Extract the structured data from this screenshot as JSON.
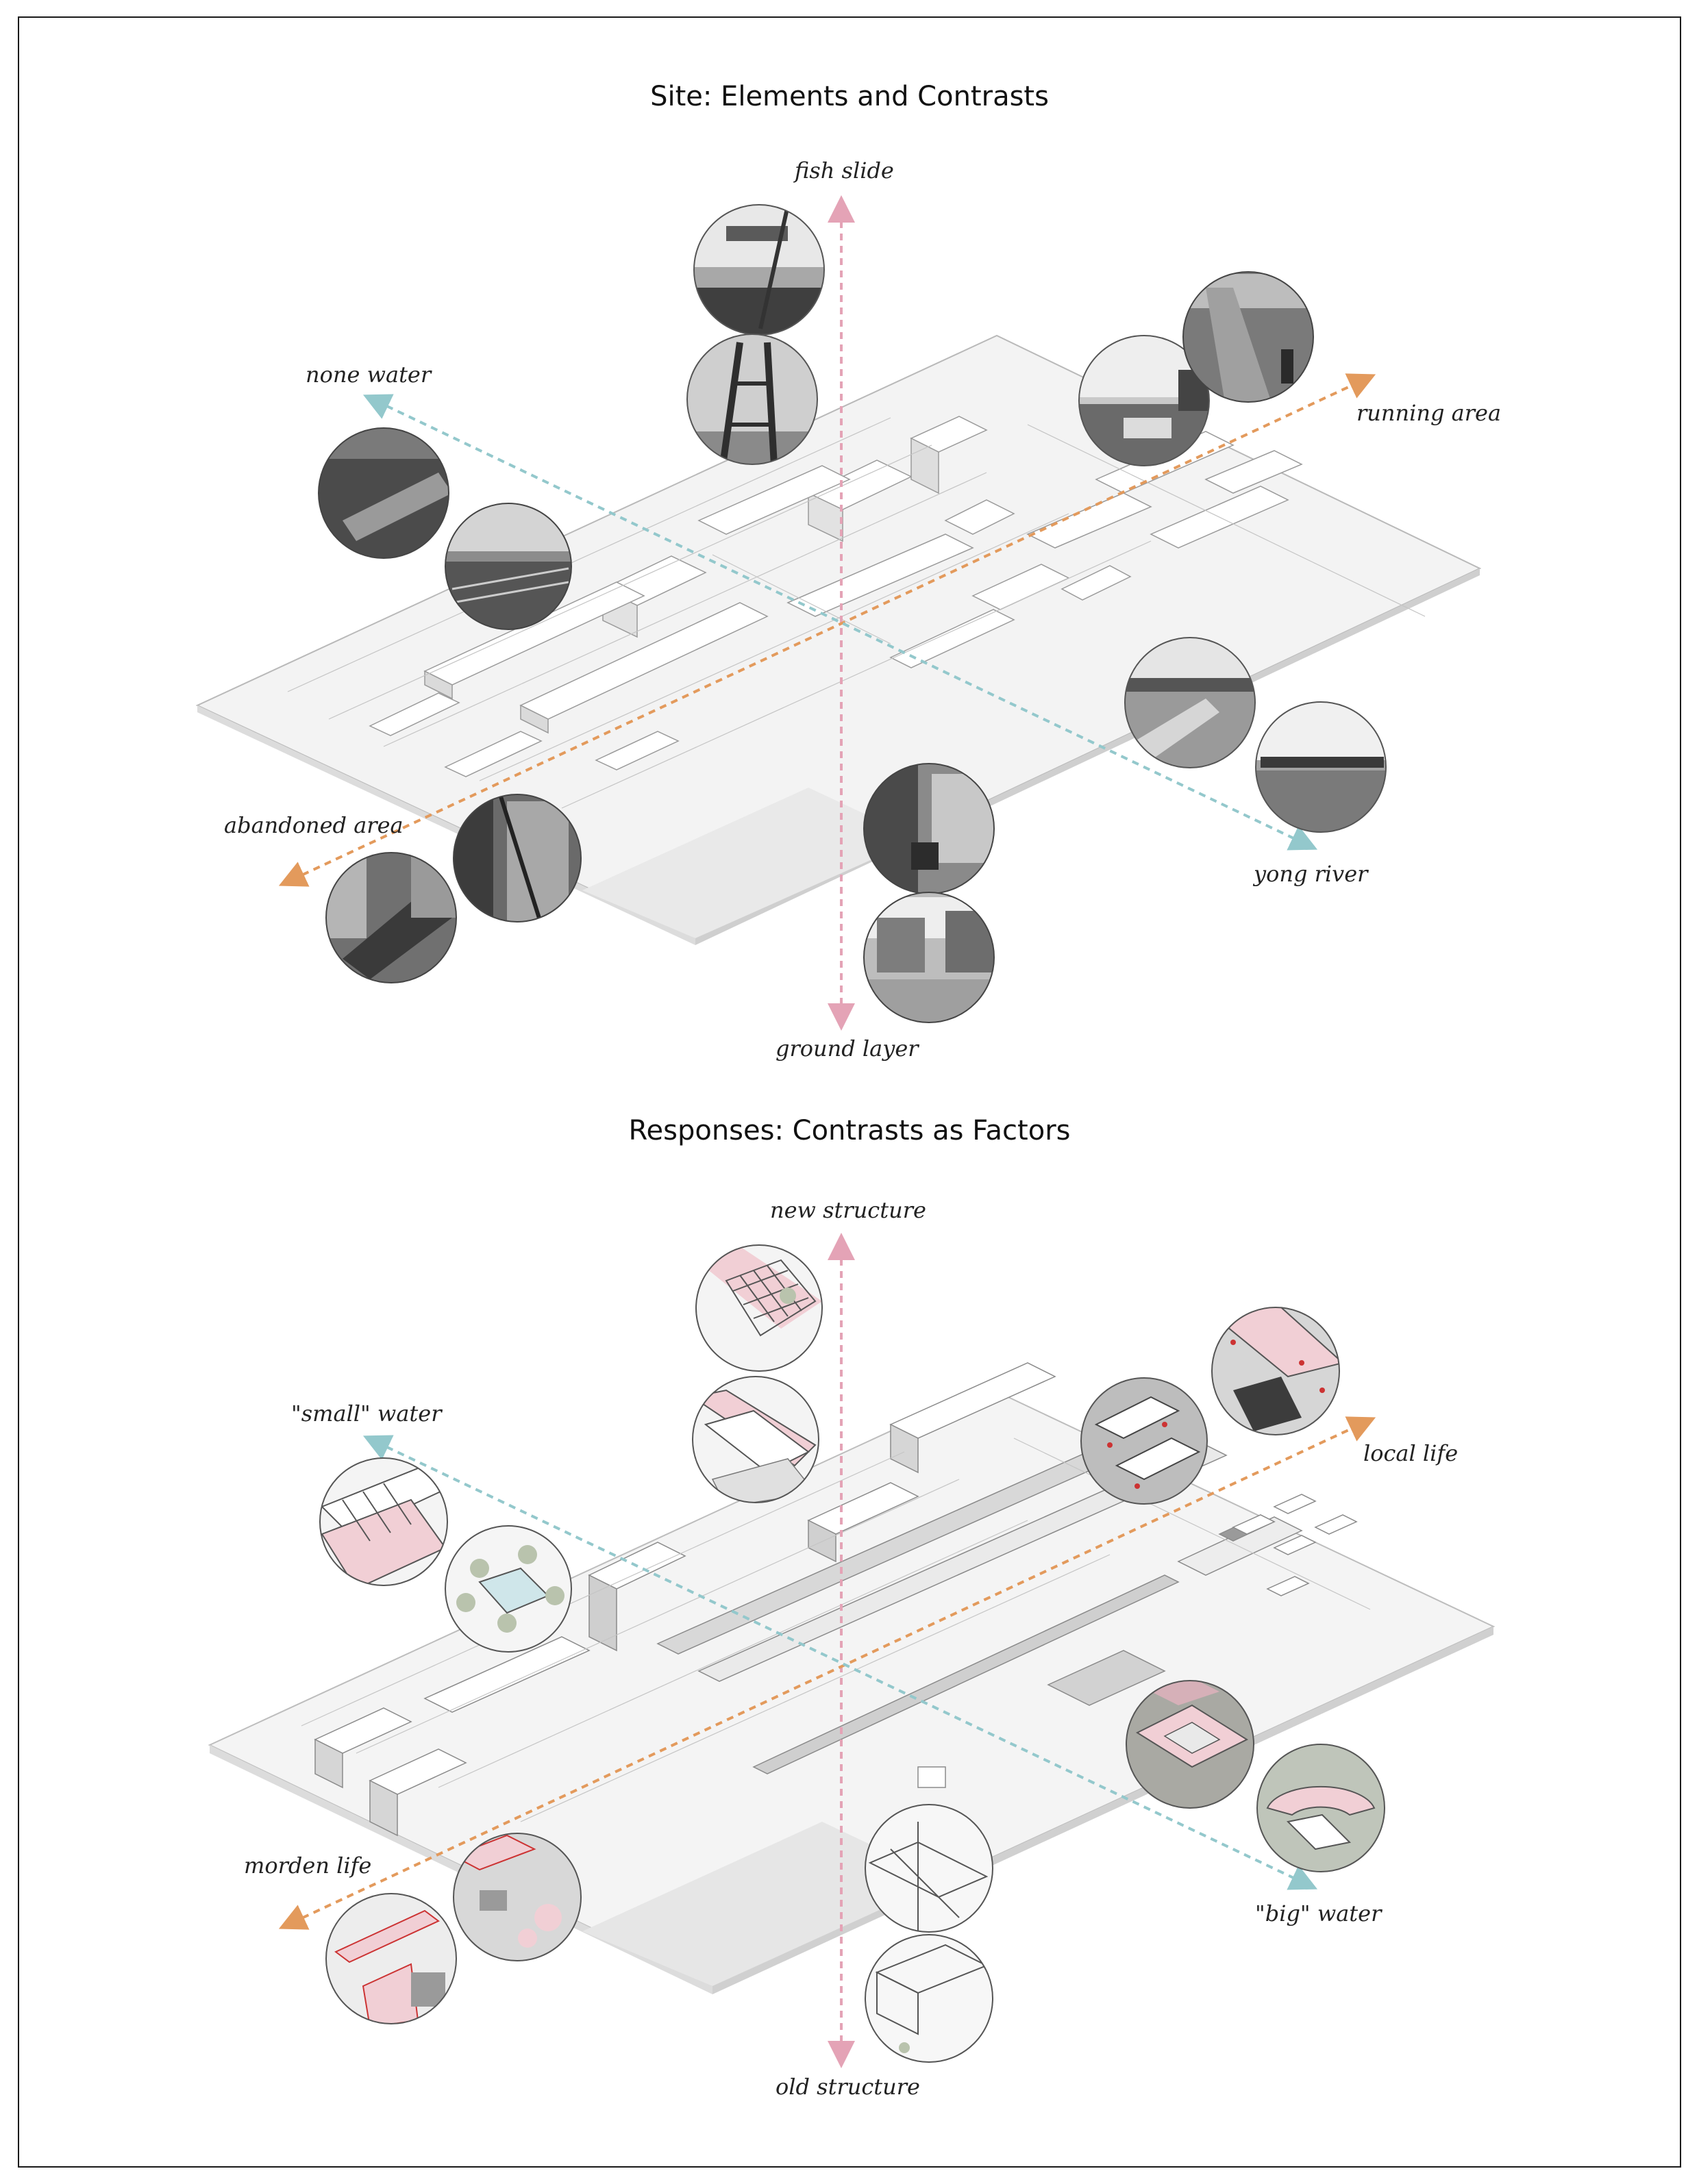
{
  "section1": {
    "title": "Site: Elements and Contrasts",
    "labels": {
      "top": "fish slide",
      "bottom": "ground layer",
      "upper_left": "none water",
      "lower_left": "abandoned area",
      "upper_right": "running area",
      "lower_right": "yong river"
    }
  },
  "section2": {
    "title": "Responses: Contrasts as Factors",
    "labels": {
      "top": "new structure",
      "bottom": "old structure",
      "upper_left": "\"small\" water",
      "lower_left": "morden life",
      "upper_right": "local life",
      "lower_right": "\"big\" water"
    }
  },
  "colors": {
    "pink_axis": "#e4a3b6",
    "orange_axis": "#e39a5c",
    "blue_axis": "#93c8cc",
    "photo_dark": "#5a5a5a",
    "photo_mid": "#8a8a8a",
    "drawing_bg": "#f2f2f2",
    "drawing_pink": "#f1cfd5",
    "drawing_green": "#b9c3ad"
  }
}
